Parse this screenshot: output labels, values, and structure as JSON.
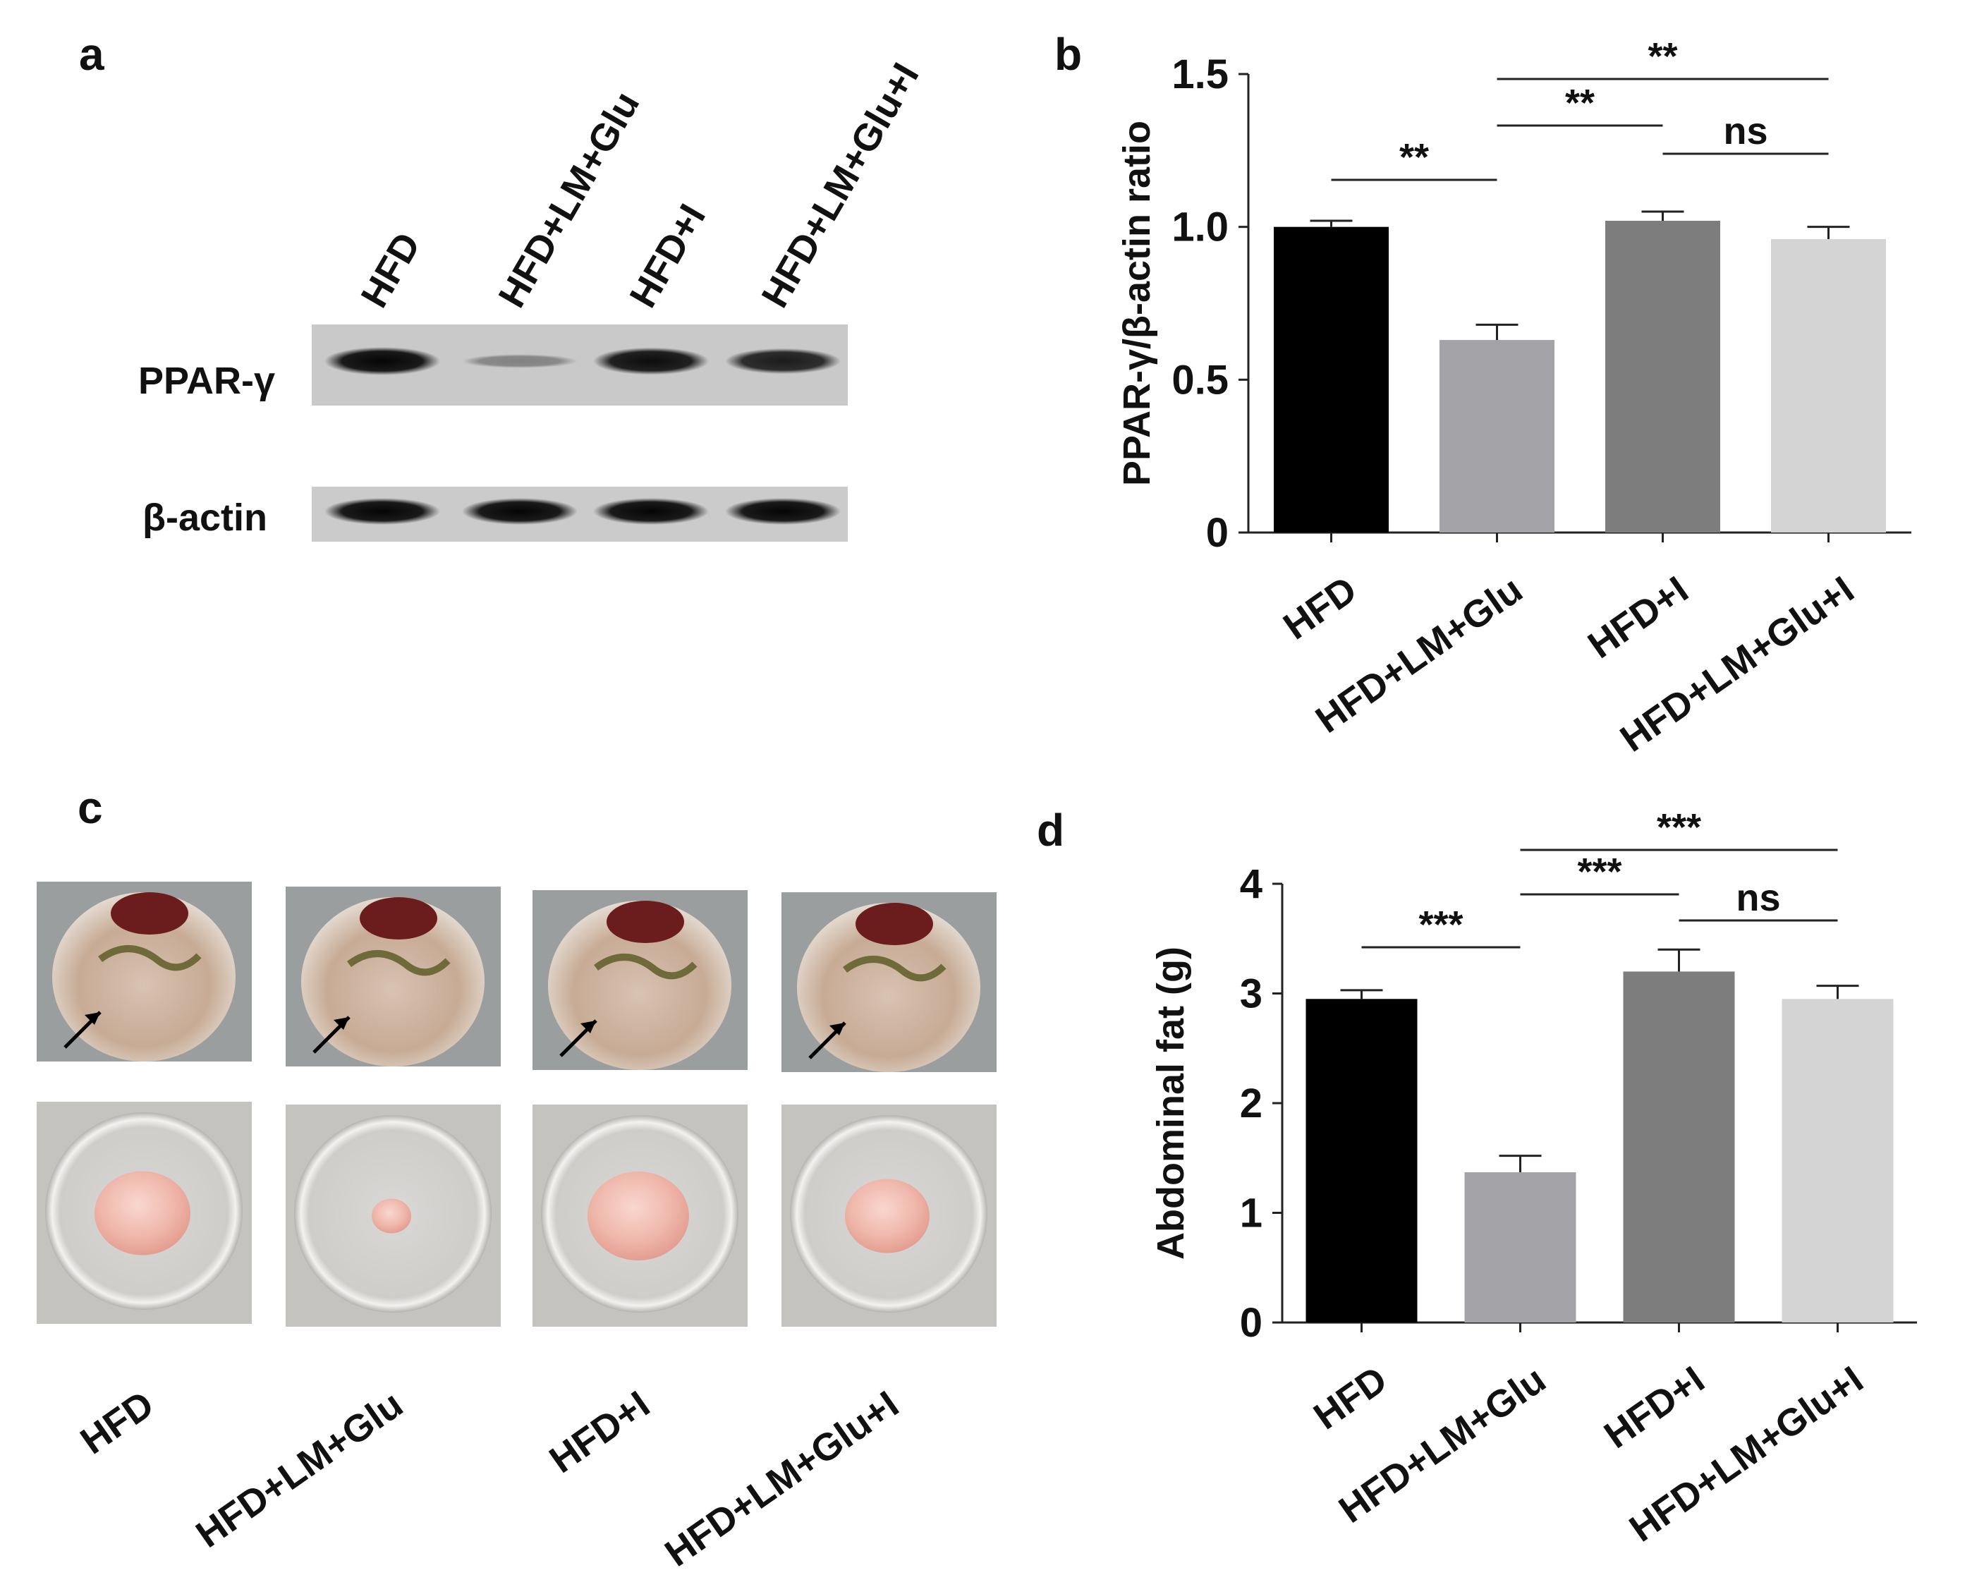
{
  "panels": {
    "a": {
      "letter": "a",
      "lane_labels": [
        "HFD",
        "HFD+LM+Glu",
        "HFD+I",
        "HFD+LM+Glu+I"
      ],
      "row_labels": [
        "PPAR-γ",
        "β-actin"
      ],
      "band_intensity": {
        "PPAR-γ": [
          1.0,
          0.15,
          0.95,
          0.85
        ],
        "β-actin": [
          1.0,
          1.0,
          1.0,
          1.0
        ]
      }
    },
    "c": {
      "letter": "c",
      "group_labels": [
        "HFD",
        "HFD+LM+Glu",
        "HFD+I",
        "HFD+LM+Glu+I"
      ],
      "fat_mass_size_relative": [
        0.85,
        0.35,
        0.9,
        0.75
      ]
    }
  },
  "chart_data": [
    {
      "id": "b",
      "letter": "b",
      "type": "bar",
      "categories": [
        "HFD",
        "HFD+LM+Glu",
        "HFD+I",
        "HFD+LM+Glu+I"
      ],
      "values": [
        1.0,
        0.63,
        1.02,
        0.96
      ],
      "errors": [
        0.02,
        0.05,
        0.03,
        0.04
      ],
      "bar_colors": [
        "#000000",
        "#a3a3a8",
        "#7d7d7d",
        "#d4d4d4"
      ],
      "ylabel": "PPAR-γ/β-actin ratio",
      "xlabel": "",
      "ylim": [
        0,
        1.5
      ],
      "yticks": [
        0,
        0.5,
        1.0,
        1.5
      ],
      "ytick_labels": [
        "0",
        "0.5",
        "1.0",
        "1.5"
      ],
      "significance": [
        {
          "from": 0,
          "to": 1,
          "label": "**"
        },
        {
          "from": 1,
          "to": 2,
          "label": "**"
        },
        {
          "from": 2,
          "to": 3,
          "label": "ns"
        },
        {
          "from": 1,
          "to": 3,
          "label": "**"
        }
      ]
    },
    {
      "id": "d",
      "letter": "d",
      "type": "bar",
      "categories": [
        "HFD",
        "HFD+LM+Glu",
        "HFD+I",
        "HFD+LM+Glu+I"
      ],
      "values": [
        2.95,
        1.37,
        3.2,
        2.95
      ],
      "errors": [
        0.08,
        0.15,
        0.2,
        0.12
      ],
      "bar_colors": [
        "#000000",
        "#a3a3a8",
        "#7d7d7d",
        "#d4d4d4"
      ],
      "ylabel": "Abdominal fat (g)",
      "xlabel": "",
      "ylim": [
        0,
        4
      ],
      "yticks": [
        0,
        1,
        2,
        3,
        4
      ],
      "ytick_labels": [
        "0",
        "1",
        "2",
        "3",
        "4"
      ],
      "significance": [
        {
          "from": 0,
          "to": 1,
          "label": "***"
        },
        {
          "from": 1,
          "to": 2,
          "label": "***"
        },
        {
          "from": 2,
          "to": 3,
          "label": "ns"
        },
        {
          "from": 1,
          "to": 3,
          "label": "***"
        }
      ]
    }
  ]
}
